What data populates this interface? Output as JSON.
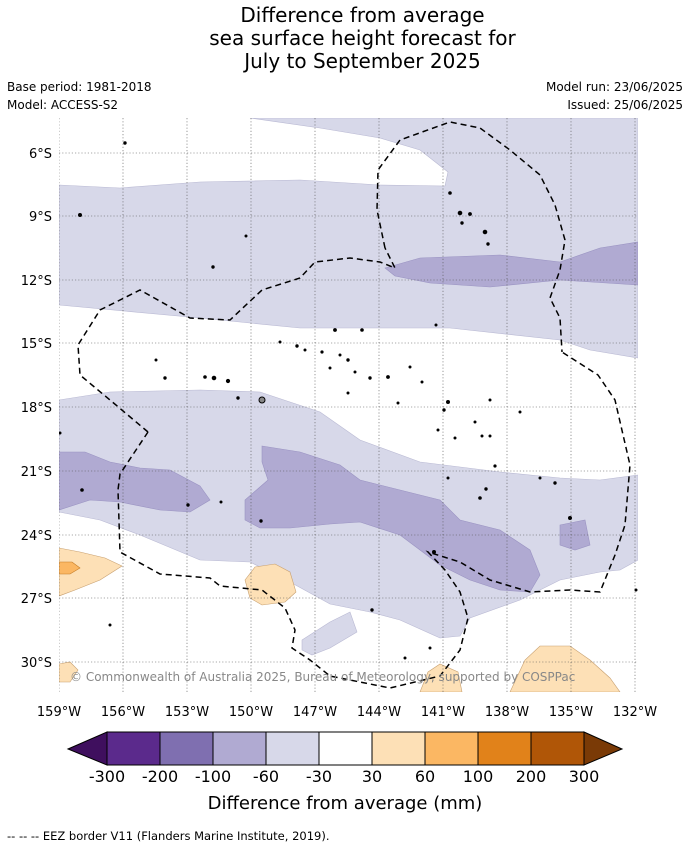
{
  "title": {
    "line1": "Difference from average",
    "line2": "sea surface height forecast for",
    "line3": "July to September 2025"
  },
  "meta": {
    "base_period": "Base period: 1981-2018",
    "model": "Model: ACCESS-S2",
    "model_run": "Model run: 23/06/2025",
    "issued": "Issued: 25/06/2025"
  },
  "map": {
    "lat_labels": [
      "6°S",
      "9°S",
      "12°S",
      "15°S",
      "18°S",
      "21°S",
      "24°S",
      "27°S",
      "30°S"
    ],
    "lon_labels": [
      "159°W",
      "156°W",
      "153°W",
      "150°W",
      "147°W",
      "144°W",
      "141°W",
      "138°W",
      "135°W",
      "132°W"
    ],
    "copyright": "© Commonwealth of Australia 2025, Bureau of Meteorology, supported by COSPPac"
  },
  "colorbar": {
    "tick_labels": [
      "-300",
      "-200",
      "-100",
      "-60",
      "-30",
      "30",
      "60",
      "100",
      "200",
      "300"
    ],
    "colors": [
      "#3f0f5e",
      "#5b2a8c",
      "#7f6fb0",
      "#b0aad2",
      "#d7d8e9",
      "#ffffff",
      "#fde0b6",
      "#fbb763",
      "#e1821a",
      "#b05607",
      "#7a3a06"
    ],
    "label": "Difference from average (mm)"
  },
  "legend": {
    "eez_text": "--  --  -- EEZ border V11 (Flanders Marine Institute, 2019)."
  }
}
